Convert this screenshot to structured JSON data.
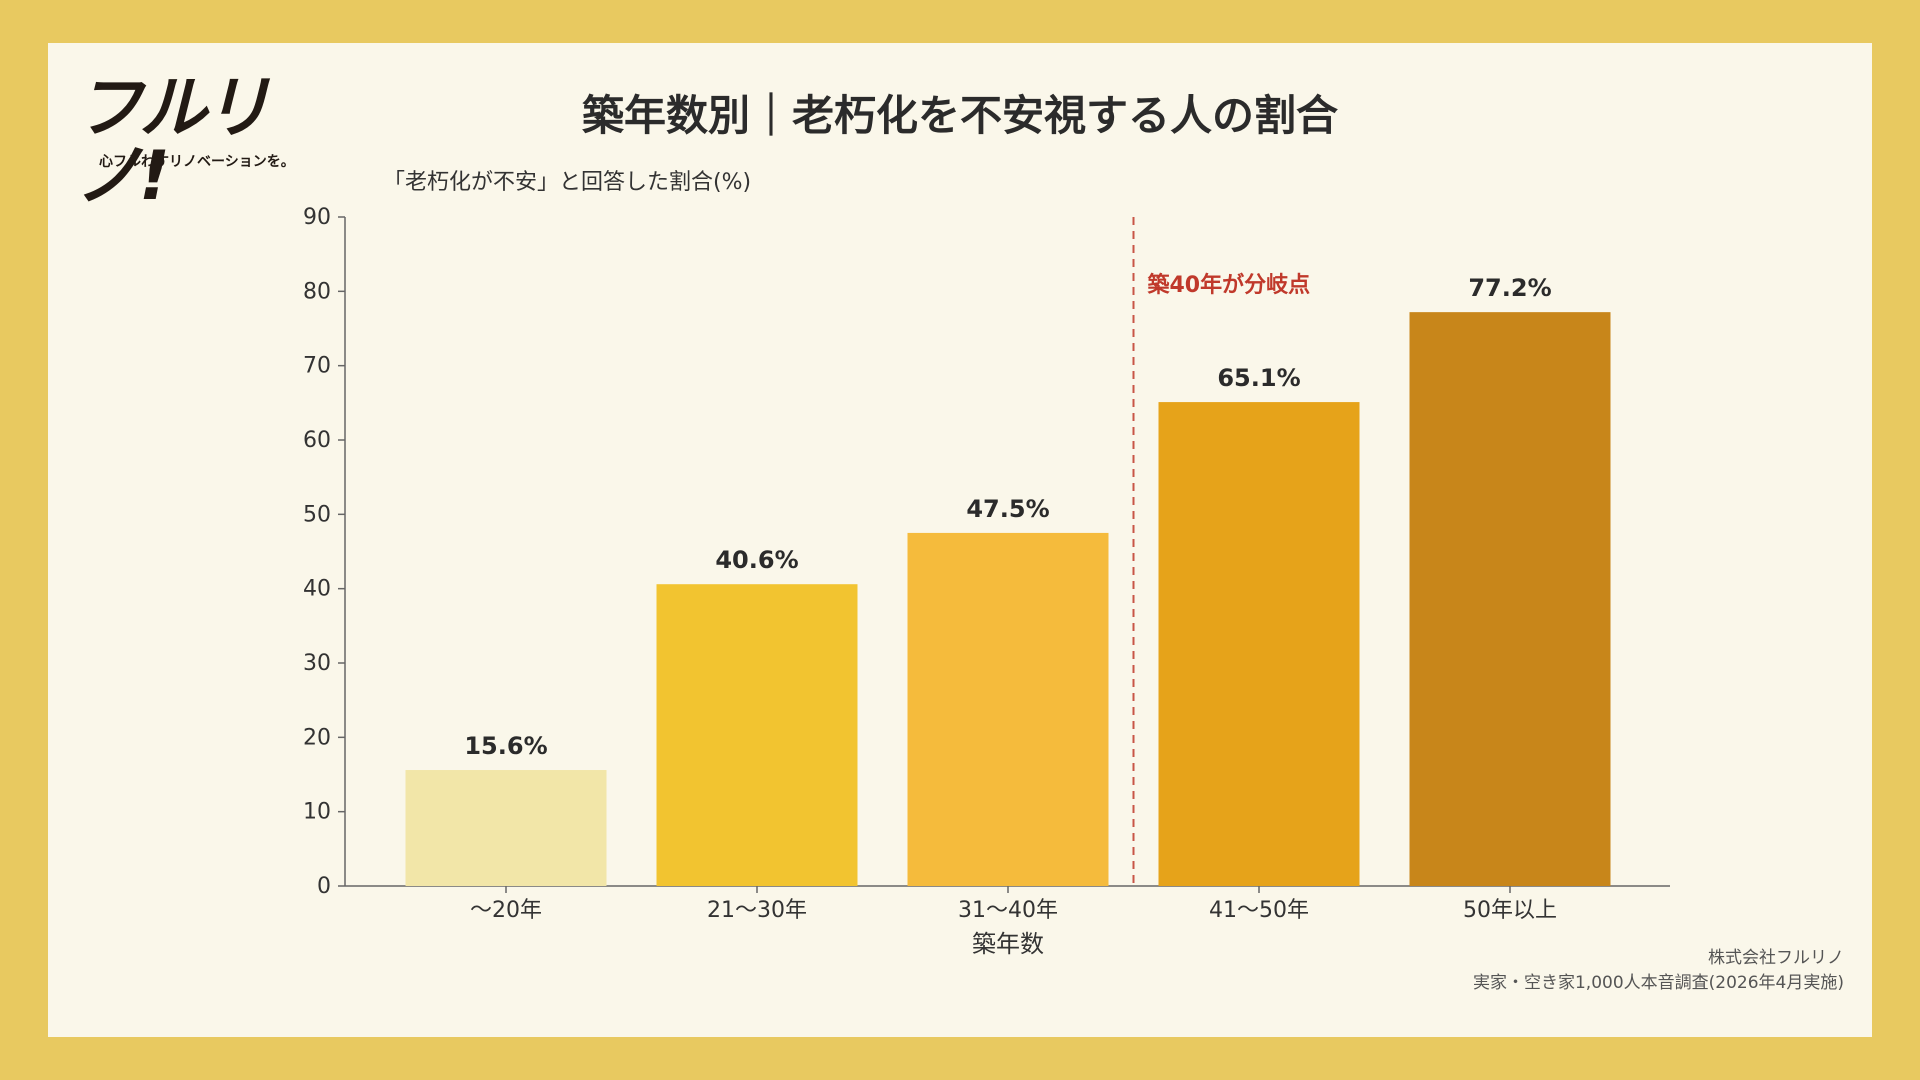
{
  "brand": {
    "logo_text": "フルリノ!",
    "tagline": "心フルわすリノベーションを。"
  },
  "title": "築年数別｜老朽化を不安視する人の割合",
  "credit": {
    "company": "株式会社フルリノ",
    "survey": "実家・空き家1,000人本音調査(2026年4月実施)"
  },
  "colors": {
    "outer_background": "#e8c960",
    "card_background": "#faf7ea",
    "annotation": "#c0392b",
    "bars": [
      "#f2e6a8",
      "#f2c430",
      "#f5bb3c",
      "#e6a31a",
      "#c8861a"
    ]
  },
  "chart_data": {
    "type": "bar",
    "categories": [
      "〜20年",
      "21〜30年",
      "31〜40年",
      "41〜50年",
      "50年以上"
    ],
    "values": [
      15.6,
      40.6,
      47.5,
      65.1,
      77.2
    ],
    "value_labels": [
      "15.6%",
      "40.6%",
      "47.5%",
      "65.1%",
      "77.2%"
    ],
    "ylabel": "「老朽化が不安」と回答した割合(%)",
    "xlabel": "築年数",
    "ylim": [
      0,
      90
    ],
    "yticks": [
      0,
      10,
      20,
      30,
      40,
      50,
      60,
      70,
      80,
      90
    ],
    "grid": false,
    "annotation": {
      "label": "築40年が分岐点",
      "position": "between 31〜40年 and 41〜50年",
      "style": "dashed vertical line"
    }
  }
}
